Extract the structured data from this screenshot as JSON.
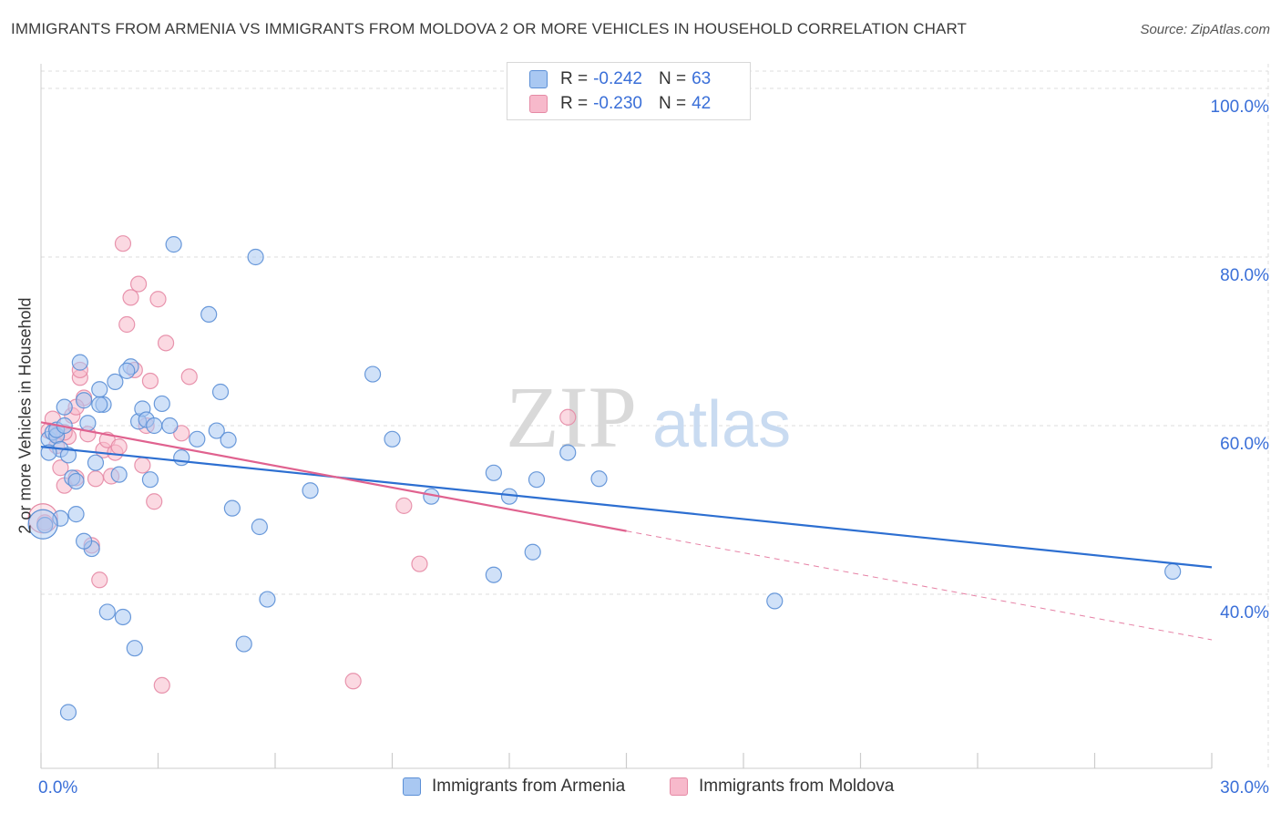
{
  "title": "IMMIGRANTS FROM ARMENIA VS IMMIGRANTS FROM MOLDOVA 2 OR MORE VEHICLES IN HOUSEHOLD CORRELATION CHART",
  "source": "Source: ZipAtlas.com",
  "watermark": {
    "zip": "ZIP",
    "atlas": "atlas"
  },
  "legend": {
    "r_label": "R =",
    "n_label": "N =",
    "series": [
      {
        "r": "-0.242",
        "n": "63"
      },
      {
        "r": "-0.230",
        "n": "42"
      }
    ]
  },
  "colors": {
    "armenia_fill": "#a9c8f2",
    "armenia_stroke": "#5b8fd6",
    "armenia_line": "#2d6fd1",
    "moldova_fill": "#f7b9cb",
    "moldova_stroke": "#e58aa5",
    "moldova_line": "#e0628f",
    "tick_label": "#3a6fd8",
    "grid": "#dddddd"
  },
  "chart_data": {
    "type": "scatter",
    "xlabel": "",
    "ylabel": "2 or more Vehicles in Household",
    "xlim": [
      0,
      30
    ],
    "ylim": [
      20,
      100
    ],
    "x_tick_labels": [
      "0.0%",
      "30.0%"
    ],
    "y_tick_labels": [
      "40.0%",
      "60.0%",
      "80.0%",
      "100.0%"
    ],
    "y_ticks": [
      40,
      60,
      80,
      100
    ],
    "series": [
      {
        "name": "Immigrants from Armenia",
        "points": [
          [
            0.2,
            58.4
          ],
          [
            0.3,
            59.2
          ],
          [
            0.4,
            58.8
          ],
          [
            0.5,
            57.2
          ],
          [
            0.6,
            62.2
          ],
          [
            0.7,
            56.5
          ],
          [
            0.8,
            53.8
          ],
          [
            0.9,
            53.4
          ],
          [
            1.0,
            67.5
          ],
          [
            1.1,
            63.0
          ],
          [
            1.2,
            60.3
          ],
          [
            1.3,
            45.4
          ],
          [
            1.4,
            55.6
          ],
          [
            1.5,
            64.3
          ],
          [
            1.6,
            62.5
          ],
          [
            1.7,
            37.9
          ],
          [
            1.9,
            65.2
          ],
          [
            2.0,
            54.2
          ],
          [
            2.1,
            37.3
          ],
          [
            2.3,
            67.0
          ],
          [
            2.2,
            66.5
          ],
          [
            2.4,
            33.6
          ],
          [
            2.5,
            60.5
          ],
          [
            2.6,
            62.0
          ],
          [
            2.7,
            60.7
          ],
          [
            2.8,
            53.6
          ],
          [
            2.9,
            60.0
          ],
          [
            3.1,
            62.6
          ],
          [
            3.3,
            60.0
          ],
          [
            3.4,
            81.5
          ],
          [
            3.6,
            56.2
          ],
          [
            4.0,
            58.4
          ],
          [
            4.3,
            73.2
          ],
          [
            4.5,
            59.4
          ],
          [
            4.6,
            64.0
          ],
          [
            4.8,
            58.3
          ],
          [
            4.9,
            50.2
          ],
          [
            5.2,
            34.1
          ],
          [
            5.5,
            80.0
          ],
          [
            5.6,
            48.0
          ],
          [
            5.8,
            39.4
          ],
          [
            6.9,
            52.3
          ],
          [
            8.5,
            66.1
          ],
          [
            9.0,
            58.4
          ],
          [
            10.0,
            51.6
          ],
          [
            11.6,
            54.4
          ],
          [
            11.6,
            42.3
          ],
          [
            12.0,
            51.6
          ],
          [
            12.6,
            45.0
          ],
          [
            12.7,
            53.6
          ],
          [
            13.5,
            56.8
          ],
          [
            14.3,
            53.7
          ],
          [
            18.8,
            39.2
          ],
          [
            29.0,
            42.7
          ],
          [
            0.1,
            48.2
          ],
          [
            0.5,
            49.0
          ],
          [
            0.7,
            26.0
          ],
          [
            0.9,
            49.5
          ],
          [
            1.1,
            46.3
          ],
          [
            1.5,
            62.5
          ],
          [
            0.4,
            59.5
          ],
          [
            0.2,
            56.8
          ],
          [
            0.6,
            60.0
          ]
        ]
      },
      {
        "name": "Immigrants from Moldova",
        "points": [
          [
            0.2,
            59.4
          ],
          [
            0.3,
            60.8
          ],
          [
            0.4,
            57.6
          ],
          [
            0.5,
            55.0
          ],
          [
            0.6,
            52.9
          ],
          [
            0.7,
            58.7
          ],
          [
            0.8,
            61.2
          ],
          [
            0.9,
            53.8
          ],
          [
            1.0,
            65.7
          ],
          [
            1.1,
            63.3
          ],
          [
            1.2,
            59.0
          ],
          [
            1.3,
            45.8
          ],
          [
            1.4,
            53.7
          ],
          [
            1.5,
            41.7
          ],
          [
            1.6,
            57.1
          ],
          [
            1.7,
            58.3
          ],
          [
            1.8,
            54.0
          ],
          [
            1.9,
            56.8
          ],
          [
            2.0,
            57.5
          ],
          [
            2.1,
            81.6
          ],
          [
            2.2,
            72.0
          ],
          [
            2.3,
            75.2
          ],
          [
            2.4,
            66.6
          ],
          [
            2.5,
            76.8
          ],
          [
            2.6,
            55.3
          ],
          [
            2.7,
            60.0
          ],
          [
            2.8,
            65.3
          ],
          [
            2.9,
            51.0
          ],
          [
            3.0,
            75.0
          ],
          [
            3.1,
            29.2
          ],
          [
            3.2,
            69.8
          ],
          [
            3.6,
            59.1
          ],
          [
            3.8,
            65.8
          ],
          [
            8.0,
            29.7
          ],
          [
            9.3,
            50.5
          ],
          [
            9.7,
            43.6
          ],
          [
            13.5,
            61.0
          ],
          [
            1.0,
            66.6
          ],
          [
            0.9,
            62.2
          ],
          [
            0.4,
            58.9
          ],
          [
            0.1,
            48.5
          ],
          [
            0.6,
            59.2
          ]
        ]
      }
    ],
    "trendlines": [
      {
        "series": "Immigrants from Armenia",
        "from": [
          0,
          57.5
        ],
        "to": [
          30,
          43.2
        ],
        "style": "solid"
      },
      {
        "series": "Immigrants from Moldova",
        "from": [
          0,
          60.4
        ],
        "to": [
          15,
          47.5
        ],
        "style": "solid"
      },
      {
        "series": "Immigrants from Moldova",
        "from": [
          15,
          47.5
        ],
        "to": [
          30,
          34.6
        ],
        "style": "dashed"
      }
    ]
  },
  "bottom_legend": [
    "Immigrants from Armenia",
    "Immigrants from Moldova"
  ]
}
